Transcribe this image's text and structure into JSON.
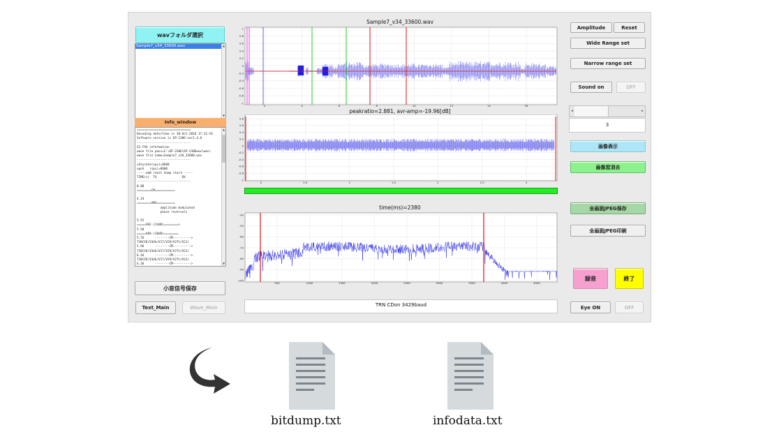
{
  "left_panel": {
    "folder_button": "wavフォルダ選択",
    "file_list": [
      "Sample7_v34_33600.wav"
    ],
    "info_header": "Info_window",
    "info_lines": [
      "==============================",
      "Decoding date/time is 30-Oct-2016 17:12:19",
      "Software version is EP-230E:ver1.4.8",
      "------------------------------",
      "G3 FAX information",
      "wave file pass=C:\\EP-230E\\EP-230Ewav\\wav\\",
      "wave file name=Sample7_v34_33600.wav",
      "------------------------------",
      "v4ryrate(sps)=8600",
      "upck   (sps)=8600",
      "-----ub0 rxbit dump start------",
      "TIME(s)  TX              RX",
      "------------------------------",
      "0.08",
      "========CM===========",
      "",
      "4.24",
      "========ANS==========",
      "             amplitude modulated",
      "             phase reversals",
      "",
      "5.55",
      "=====V8C-(24dB)========>",
      "5.58",
      "=====V8A-(30dB)========",
      "5.76      --------CM---------->",
      "T30CIK/V34k/V17/V29/V27t/V21/",
      "5.96      --------CM---------->",
      "T30CIK/V34k/V17/V29/V27t/V21/",
      "6.16      --------CM---------->",
      "T30CIK/V34k/V17/V29/V27t/V21/",
      "6.36      --------CM---------->",
      "T30CIK/V34k/V17/V29/V27t/V21/",
      "6.54      --------CM---------->",
      "T30CIK/V34k/V17/V29/V27t/V21/",
      "6.74      --------CM---------->"
    ],
    "save_button": "小窓信号保存",
    "text_main_button": "Text_Main",
    "wave_main_button": "Wave_Main"
  },
  "plots": {
    "waveform_title": "Sample7_v34_33600.wav",
    "waveform_y_ticks": [
      "1",
      "0.8",
      "0.6",
      "0.4",
      "0.2",
      "0",
      "-0.2",
      "-0.4",
      "-0.6",
      "-0.8",
      "-1"
    ],
    "waveform_x_ticks": [
      "2",
      "4",
      "6",
      "8",
      "10",
      "12",
      "14",
      "16"
    ],
    "peak_title": "peakratio=2.881,   avr-amp=-19.96[dB]",
    "peak_y_ticks": [
      "0.8",
      "0.6",
      "0.4",
      "0.2",
      "0",
      "-0.2",
      "-0.4",
      "-0.6",
      "-0.8",
      "-1"
    ],
    "peak_x_ticks": [
      "0",
      "0.5",
      "1",
      "1.5",
      "2",
      "2.5",
      "3"
    ],
    "spectrum_title": "time(ms)=2380",
    "spectrum_y_ticks": [
      "-40",
      "-50",
      "-60",
      "-70",
      "-80",
      "-90",
      "-100"
    ],
    "spectrum_x_ticks": [
      "500",
      "1000",
      "1500",
      "2000",
      "2500",
      "3000",
      "3500",
      "4000",
      "4500"
    ],
    "status_text": "TRN CDon 3429baud",
    "colors": {
      "signal": "#1f1fe6",
      "marker": "#e01010",
      "green_bar": "#22ee22"
    }
  },
  "right_panel": {
    "amplitude_button": "Amplitude",
    "reset_button": "Reset",
    "wide_range_button": "Wide Range set",
    "narrow_range_button": "Narrow range set",
    "sound_on_button": "Sound on",
    "off_button": "OFF",
    "slider_value": "3",
    "image_show_button": "画像表示",
    "image_erase_button": "画像窓消去",
    "save_jpeg_button": "全画面JPEG保存",
    "print_jpeg_button": "全画面JPEG印刷",
    "record_button": "録音",
    "exit_button": "終了",
    "eye_on_button": "Eye ON",
    "eye_off_button": "OFF"
  },
  "files": {
    "file1": "bitdump.txt",
    "file2": "infodata.txt"
  }
}
